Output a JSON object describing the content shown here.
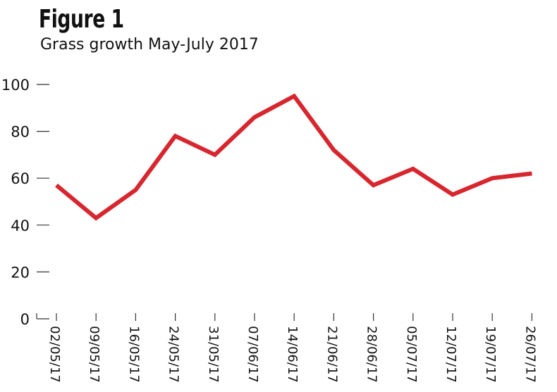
{
  "figure_label": "Figure 1",
  "chart_data": {
    "type": "line",
    "title": "Grass growth May-July 2017",
    "xlabel": "",
    "ylabel": "",
    "categories": [
      "02/05/17",
      "09/05/17",
      "16/05/17",
      "24/05/17",
      "31/05/17",
      "07/06/17",
      "14/06/17",
      "21/06/17",
      "28/06/17",
      "05/07/17",
      "12/07/17",
      "19/07/17",
      "26/07/17"
    ],
    "series": [
      {
        "values": [
          57,
          43,
          55,
          78,
          70,
          86,
          95,
          72,
          57,
          64,
          53,
          60,
          62
        ]
      }
    ],
    "ylim": [
      0,
      100
    ],
    "yticks": [
      0,
      20,
      40,
      60,
      80,
      100
    ],
    "grid": false,
    "line_color": "#d7262e"
  }
}
